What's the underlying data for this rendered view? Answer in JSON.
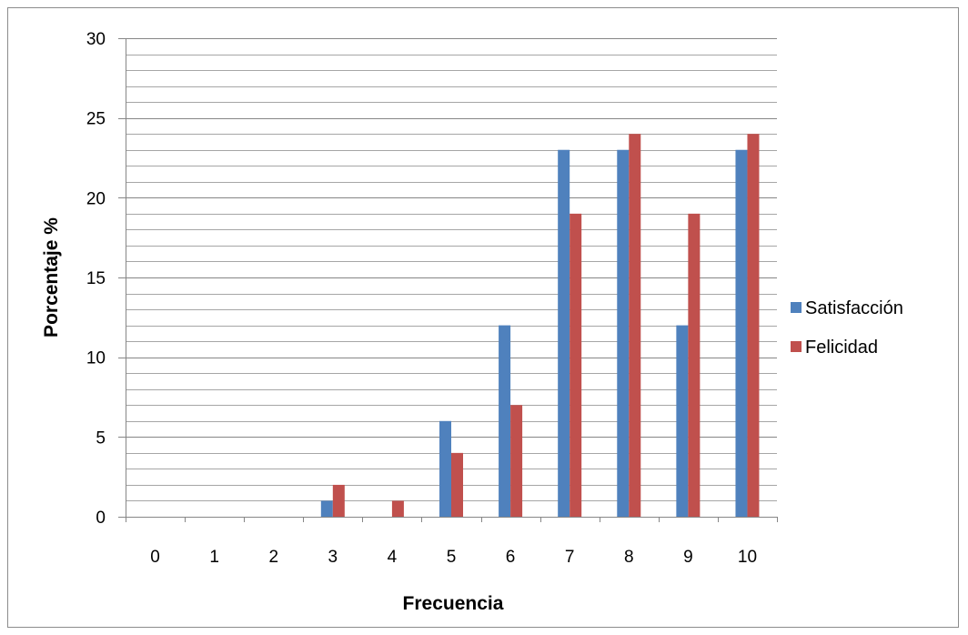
{
  "chart_data": {
    "type": "bar",
    "title": "",
    "xlabel": "Frecuencia",
    "ylabel": "Porcentaje %",
    "categories": [
      "0",
      "1",
      "2",
      "3",
      "4",
      "5",
      "6",
      "7",
      "8",
      "9",
      "10"
    ],
    "series": [
      {
        "name": "Satisfacción",
        "color": "#4f81bd",
        "values": [
          0,
          0,
          0,
          1,
          0,
          6,
          12,
          23,
          23,
          12,
          23
        ]
      },
      {
        "name": "Felicidad",
        "color": "#c0504d",
        "values": [
          0,
          0,
          0,
          2,
          1,
          4,
          7,
          19,
          24,
          19,
          24
        ]
      }
    ],
    "ylim": [
      0,
      30
    ],
    "yticks": [
      0,
      5,
      10,
      15,
      20,
      25,
      30
    ],
    "minor_gridlines_per_major": 5,
    "grid": true,
    "legend": "right"
  }
}
